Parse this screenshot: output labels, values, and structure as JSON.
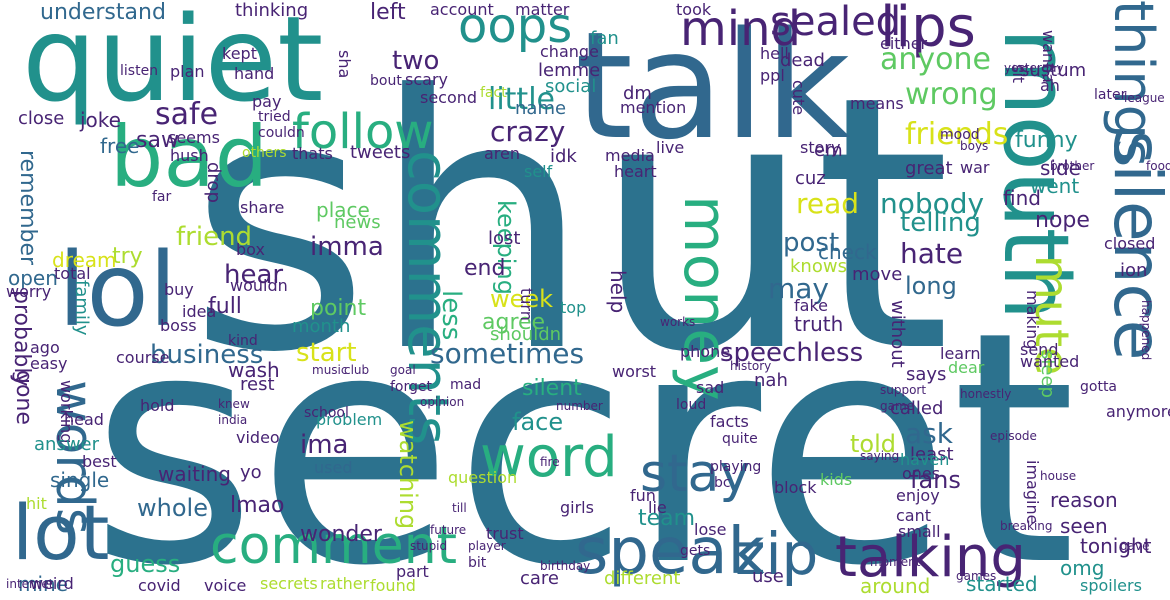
{
  "palette": {
    "dark_purple": "#482474",
    "indigo": "#3b528b",
    "slate_blue": "#31688e",
    "teal_blue": "#2c728e",
    "teal": "#21918c",
    "sea_green": "#28ae80",
    "green": "#5ec962",
    "lime": "#addc30",
    "yellow": "#d8e219"
  },
  "words": [
    {
      "text": "shut",
      "color": "teal_blue"
    },
    {
      "text": "secret",
      "color": "teal_blue"
    },
    {
      "text": "talk",
      "color": "slate_blue"
    },
    {
      "text": "quiet",
      "color": "teal"
    },
    {
      "text": "mouth",
      "color": "teal"
    },
    {
      "text": "bad",
      "color": "sea_green"
    },
    {
      "text": "lol",
      "color": "slate_blue"
    },
    {
      "text": "silence",
      "color": "slate_blue"
    },
    {
      "text": "things",
      "color": "slate_blue"
    },
    {
      "text": "comments",
      "color": "teal"
    },
    {
      "text": "words",
      "color": "slate_blue"
    },
    {
      "text": "speak",
      "color": "slate_blue"
    },
    {
      "text": "zip",
      "color": "slate_blue"
    },
    {
      "text": "talking",
      "color": "dark_purple"
    },
    {
      "text": "money",
      "color": "sea_green"
    },
    {
      "text": "comment",
      "color": "sea_green"
    },
    {
      "text": "word",
      "color": "sea_green"
    },
    {
      "text": "stay",
      "color": "slate_blue"
    },
    {
      "text": "lot",
      "color": "slate_blue"
    },
    {
      "text": "mute",
      "color": "lime"
    },
    {
      "text": "follow",
      "color": "sea_green"
    },
    {
      "text": "oops",
      "color": "teal"
    },
    {
      "text": "mind",
      "color": "dark_purple"
    },
    {
      "text": "sealed",
      "color": "dark_purple"
    },
    {
      "text": "lips",
      "color": "dark_purple"
    },
    {
      "text": "sometimes",
      "color": "slate_blue"
    },
    {
      "text": "speechless",
      "color": "dark_purple"
    },
    {
      "text": "business",
      "color": "slate_blue"
    },
    {
      "text": "anyone",
      "color": "green"
    },
    {
      "text": "friends",
      "color": "yellow"
    },
    {
      "text": "wrong",
      "color": "green"
    },
    {
      "text": "safe",
      "color": "dark_purple"
    },
    {
      "text": "little",
      "color": "teal"
    },
    {
      "text": "crazy",
      "color": "dark_purple"
    },
    {
      "text": "two",
      "color": "dark_purple"
    },
    {
      "text": "name",
      "color": "slate_blue"
    },
    {
      "text": "post",
      "color": "slate_blue"
    },
    {
      "text": "read",
      "color": "yellow"
    },
    {
      "text": "nobody",
      "color": "teal"
    },
    {
      "text": "telling",
      "color": "teal"
    },
    {
      "text": "hate",
      "color": "dark_purple"
    },
    {
      "text": "long",
      "color": "slate_blue"
    },
    {
      "text": "may",
      "color": "slate_blue"
    },
    {
      "text": "week",
      "color": "yellow"
    },
    {
      "text": "keeping",
      "color": "sea_green"
    },
    {
      "text": "watching",
      "color": "lime"
    },
    {
      "text": "whole",
      "color": "slate_blue"
    },
    {
      "text": "guess",
      "color": "sea_green"
    },
    {
      "text": "team",
      "color": "teal"
    },
    {
      "text": "told",
      "color": "lime"
    },
    {
      "text": "fans",
      "color": "dark_purple"
    },
    {
      "text": "ask",
      "color": "slate_blue"
    },
    {
      "text": "face",
      "color": "teal"
    },
    {
      "text": "silent",
      "color": "sea_green"
    },
    {
      "text": "imma",
      "color": "dark_purple"
    },
    {
      "text": "ima",
      "color": "dark_purple"
    },
    {
      "text": "lmao",
      "color": "dark_purple"
    },
    {
      "text": "hear",
      "color": "dark_purple"
    },
    {
      "text": "friend",
      "color": "lime"
    },
    {
      "text": "try",
      "color": "lime"
    },
    {
      "text": "family",
      "color": "teal"
    },
    {
      "text": "probably",
      "color": "dark_purple"
    },
    {
      "text": "remember",
      "color": "slate_blue"
    },
    {
      "text": "gone",
      "color": "dark_purple"
    },
    {
      "text": "working",
      "color": "dark_purple"
    },
    {
      "text": "understand",
      "color": "slate_blue"
    },
    {
      "text": "thinking",
      "color": "dark_purple"
    },
    {
      "text": "left",
      "color": "dark_purple"
    },
    {
      "text": "account",
      "color": "dark_purple"
    },
    {
      "text": "matter",
      "color": "dark_purple"
    },
    {
      "text": "lemme",
      "color": "dark_purple"
    },
    {
      "text": "social",
      "color": "teal"
    },
    {
      "text": "fan",
      "color": "teal"
    },
    {
      "text": "dm",
      "color": "dark_purple"
    },
    {
      "text": "joke",
      "color": "dark_purple"
    },
    {
      "text": "saw",
      "color": "dark_purple"
    },
    {
      "text": "free",
      "color": "slate_blue"
    },
    {
      "text": "drop",
      "color": "dark_purple"
    },
    {
      "text": "tweets",
      "color": "dark_purple"
    },
    {
      "text": "thats",
      "color": "dark_purple"
    },
    {
      "text": "others",
      "color": "lime"
    },
    {
      "text": "hush",
      "color": "dark_purple"
    },
    {
      "text": "seems",
      "color": "dark_purple"
    },
    {
      "text": "close",
      "color": "dark_purple"
    },
    {
      "text": "idk",
      "color": "dark_purple"
    },
    {
      "text": "media",
      "color": "dark_purple"
    },
    {
      "text": "heart",
      "color": "dark_purple"
    },
    {
      "text": "cuz",
      "color": "dark_purple"
    },
    {
      "text": "find",
      "color": "dark_purple"
    },
    {
      "text": "funny",
      "color": "teal"
    },
    {
      "text": "went",
      "color": "teal"
    },
    {
      "text": "side",
      "color": "dark_purple"
    },
    {
      "text": "nope",
      "color": "dark_purple"
    },
    {
      "text": "check",
      "color": "slate_blue"
    },
    {
      "text": "knows",
      "color": "lime"
    },
    {
      "text": "move",
      "color": "dark_purple"
    },
    {
      "text": "fake",
      "color": "dark_purple"
    },
    {
      "text": "truth",
      "color": "dark_purple"
    },
    {
      "text": "start",
      "color": "yellow"
    },
    {
      "text": "point",
      "color": "green"
    },
    {
      "text": "place",
      "color": "green"
    },
    {
      "text": "news",
      "color": "green"
    },
    {
      "text": "dream",
      "color": "yellow"
    },
    {
      "text": "open",
      "color": "slate_blue"
    },
    {
      "text": "worry",
      "color": "dark_purple"
    },
    {
      "text": "total",
      "color": "dark_purple"
    },
    {
      "text": "end",
      "color": "dark_purple"
    },
    {
      "text": "lost",
      "color": "dark_purple"
    },
    {
      "text": "less",
      "color": "sea_green"
    },
    {
      "text": "agree",
      "color": "green"
    },
    {
      "text": "shouldn",
      "color": "green"
    },
    {
      "text": "help",
      "color": "dark_purple"
    },
    {
      "text": "full",
      "color": "dark_purple"
    },
    {
      "text": "wouldn",
      "color": "dark_purple"
    },
    {
      "text": "month",
      "color": "teal"
    },
    {
      "text": "wash",
      "color": "dark_purple"
    },
    {
      "text": "rest",
      "color": "dark_purple"
    },
    {
      "text": "hold",
      "color": "dark_purple"
    },
    {
      "text": "answer",
      "color": "teal"
    },
    {
      "text": "video",
      "color": "dark_purple"
    },
    {
      "text": "single",
      "color": "slate_blue"
    },
    {
      "text": "mine",
      "color": "slate_blue"
    },
    {
      "text": "weird",
      "color": "dark_purple"
    },
    {
      "text": "waiting",
      "color": "dark_purple"
    },
    {
      "text": "yo",
      "color": "dark_purple"
    },
    {
      "text": "wonder",
      "color": "dark_purple"
    },
    {
      "text": "covid",
      "color": "dark_purple"
    },
    {
      "text": "voice",
      "color": "dark_purple"
    },
    {
      "text": "secrets",
      "color": "lime"
    },
    {
      "text": "rather",
      "color": "lime"
    },
    {
      "text": "found",
      "color": "lime"
    },
    {
      "text": "part",
      "color": "dark_purple"
    },
    {
      "text": "question",
      "color": "lime"
    },
    {
      "text": "used",
      "color": "slate_blue"
    },
    {
      "text": "problem",
      "color": "teal"
    },
    {
      "text": "trust",
      "color": "dark_purple"
    },
    {
      "text": "care",
      "color": "dark_purple"
    },
    {
      "text": "different",
      "color": "lime"
    },
    {
      "text": "fun",
      "color": "dark_purple"
    },
    {
      "text": "lie",
      "color": "dark_purple"
    },
    {
      "text": "girls",
      "color": "dark_purple"
    },
    {
      "text": "use",
      "color": "dark_purple"
    },
    {
      "text": "around",
      "color": "lime"
    },
    {
      "text": "small",
      "color": "dark_purple"
    },
    {
      "text": "cant",
      "color": "dark_purple"
    },
    {
      "text": "enjoy",
      "color": "dark_purple"
    },
    {
      "text": "ones",
      "color": "dark_purple"
    },
    {
      "text": "least",
      "color": "dark_purple"
    },
    {
      "text": "haven",
      "color": "teal"
    },
    {
      "text": "called",
      "color": "dark_purple"
    },
    {
      "text": "says",
      "color": "dark_purple"
    },
    {
      "text": "dear",
      "color": "green"
    },
    {
      "text": "learn",
      "color": "dark_purple"
    },
    {
      "text": "send",
      "color": "dark_purple"
    },
    {
      "text": "nah",
      "color": "dark_purple"
    },
    {
      "text": "phone",
      "color": "dark_purple"
    },
    {
      "text": "reason",
      "color": "dark_purple"
    },
    {
      "text": "seen",
      "color": "dark_purple"
    },
    {
      "text": "tonight",
      "color": "dark_purple"
    },
    {
      "text": "omg",
      "color": "teal"
    },
    {
      "text": "started",
      "color": "teal"
    },
    {
      "text": "spoilers",
      "color": "teal"
    },
    {
      "text": "sleep",
      "color": "green"
    },
    {
      "text": "making",
      "color": "dark_purple"
    },
    {
      "text": "without",
      "color": "dark_purple"
    },
    {
      "text": "imagine",
      "color": "dark_purple"
    },
    {
      "text": "wanted",
      "color": "dark_purple"
    },
    {
      "text": "great",
      "color": "dark_purple"
    },
    {
      "text": "war",
      "color": "dark_purple"
    },
    {
      "text": "sustum",
      "color": "dark_purple"
    },
    {
      "text": "ah",
      "color": "dark_purple"
    },
    {
      "text": "wanna",
      "color": "dark_purple"
    },
    {
      "text": "either",
      "color": "dark_purple"
    },
    {
      "text": "dead",
      "color": "dark_purple"
    },
    {
      "text": "hell",
      "color": "dark_purple"
    },
    {
      "text": "ppl",
      "color": "dark_purple"
    },
    {
      "text": "cute",
      "color": "dark_purple"
    },
    {
      "text": "mention",
      "color": "dark_purple"
    },
    {
      "text": "fact",
      "color": "lime"
    },
    {
      "text": "change",
      "color": "dark_purple"
    },
    {
      "text": "scary",
      "color": "dark_purple"
    },
    {
      "text": "second",
      "color": "dark_purple"
    },
    {
      "text": "live",
      "color": "dark_purple"
    },
    {
      "text": "aren",
      "color": "dark_purple"
    },
    {
      "text": "self",
      "color": "teal"
    },
    {
      "text": "em",
      "color": "dark_purple"
    },
    {
      "text": "story",
      "color": "dark_purple"
    },
    {
      "text": "means",
      "color": "dark_purple"
    },
    {
      "text": "mood",
      "color": "dark_purple"
    },
    {
      "text": "kept",
      "color": "dark_purple"
    },
    {
      "text": "plan",
      "color": "dark_purple"
    },
    {
      "text": "pay",
      "color": "dark_purple"
    },
    {
      "text": "tried",
      "color": "dark_purple"
    },
    {
      "text": "couldn",
      "color": "dark_purple"
    },
    {
      "text": "sha",
      "color": "dark_purple"
    },
    {
      "text": "bout",
      "color": "dark_purple"
    },
    {
      "text": "hand",
      "color": "dark_purple"
    },
    {
      "text": "listen",
      "color": "dark_purple"
    },
    {
      "text": "took",
      "color": "dark_purple"
    },
    {
      "text": "share",
      "color": "dark_purple"
    },
    {
      "text": "box",
      "color": "dark_purple"
    },
    {
      "text": "far",
      "color": "dark_purple"
    },
    {
      "text": "idea",
      "color": "dark_purple"
    },
    {
      "text": "buy",
      "color": "dark_purple"
    },
    {
      "text": "boss",
      "color": "dark_purple"
    },
    {
      "text": "kind",
      "color": "dark_purple"
    },
    {
      "text": "course",
      "color": "dark_purple"
    },
    {
      "text": "ago",
      "color": "dark_purple"
    },
    {
      "text": "easy",
      "color": "dark_purple"
    },
    {
      "text": "head",
      "color": "dark_purple"
    },
    {
      "text": "best",
      "color": "dark_purple"
    },
    {
      "text": "hit",
      "color": "lime"
    },
    {
      "text": "bit",
      "color": "dark_purple"
    },
    {
      "text": "mad",
      "color": "dark_purple"
    },
    {
      "text": "worst",
      "color": "dark_purple"
    },
    {
      "text": "top",
      "color": "teal"
    },
    {
      "text": "turn",
      "color": "dark_purple"
    },
    {
      "text": "sad",
      "color": "dark_purple"
    },
    {
      "text": "loud",
      "color": "dark_purple"
    },
    {
      "text": "facts",
      "color": "dark_purple"
    },
    {
      "text": "quite",
      "color": "dark_purple"
    },
    {
      "text": "playing",
      "color": "dark_purple"
    },
    {
      "text": "bc",
      "color": "dark_purple"
    },
    {
      "text": "block",
      "color": "dark_purple"
    },
    {
      "text": "lose",
      "color": "dark_purple"
    },
    {
      "text": "gets",
      "color": "dark_purple"
    },
    {
      "text": "kids",
      "color": "green"
    },
    {
      "text": "anymore",
      "color": "dark_purple"
    },
    {
      "text": "ion",
      "color": "dark_purple"
    },
    {
      "text": "sit",
      "color": "dark_purple"
    },
    {
      "text": "later",
      "color": "dark_purple"
    },
    {
      "text": "closed",
      "color": "dark_purple"
    },
    {
      "text": "gotta",
      "color": "dark_purple"
    },
    {
      "text": "yesterday",
      "color": "dark_purple"
    },
    {
      "text": "happened",
      "color": "dark_purple"
    },
    {
      "text": "league",
      "color": "dark_purple"
    },
    {
      "text": "games",
      "color": "dark_purple"
    },
    {
      "text": "school",
      "color": "dark_purple"
    },
    {
      "text": "forget",
      "color": "dark_purple"
    },
    {
      "text": "music",
      "color": "dark_purple"
    },
    {
      "text": "club",
      "color": "dark_purple"
    },
    {
      "text": "number",
      "color": "dark_purple"
    },
    {
      "text": "birthday",
      "color": "dark_purple"
    },
    {
      "text": "player",
      "color": "dark_purple"
    },
    {
      "text": "fire",
      "color": "dark_purple"
    },
    {
      "text": "stupid",
      "color": "dark_purple"
    },
    {
      "text": "future",
      "color": "dark_purple"
    },
    {
      "text": "till",
      "color": "dark_purple"
    },
    {
      "text": "knew",
      "color": "dark_purple"
    },
    {
      "text": "india",
      "color": "dark_purple"
    },
    {
      "text": "honestly",
      "color": "dark_purple"
    },
    {
      "text": "brother",
      "color": "dark_purple"
    },
    {
      "text": "house",
      "color": "dark_purple"
    },
    {
      "text": "episode",
      "color": "dark_purple"
    },
    {
      "text": "support",
      "color": "dark_purple"
    },
    {
      "text": "game",
      "color": "dark_purple"
    },
    {
      "text": "history",
      "color": "dark_purple"
    },
    {
      "text": "works",
      "color": "dark_purple"
    },
    {
      "text": "goal",
      "color": "dark_purple"
    },
    {
      "text": "opinion",
      "color": "dark_purple"
    },
    {
      "text": "breaking",
      "color": "dark_purple"
    },
    {
      "text": "moment",
      "color": "dark_purple"
    },
    {
      "text": "boys",
      "color": "dark_purple"
    },
    {
      "text": "gave",
      "color": "dark_purple"
    },
    {
      "text": "saying",
      "color": "dark_purple"
    },
    {
      "text": "internet",
      "color": "dark_purple"
    },
    {
      "text": "food",
      "color": "dark_purple"
    },
    {
      "text": "leave",
      "color": "dark_purple"
    },
    {
      "text": "broke",
      "color": "dark_purple"
    },
    {
      "text": "trying",
      "color": "dark_purple"
    },
    {
      "text": "save",
      "color": "dark_purple"
    },
    {
      "text": "respect",
      "color": "dark_purple"
    },
    {
      "text": "player",
      "color": "dark_purple"
    },
    {
      "text": "goes",
      "color": "dark_purple"
    },
    {
      "text": "uk",
      "color": "dark_purple"
    }
  ]
}
